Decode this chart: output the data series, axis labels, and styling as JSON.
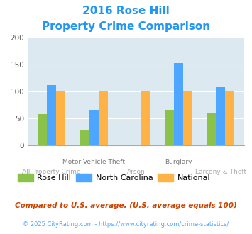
{
  "title_line1": "2016 Rose Hill",
  "title_line2": "Property Crime Comparison",
  "categories": [
    "All Property Crime",
    "Motor Vehicle Theft",
    "Arson",
    "Burglary",
    "Larceny & Theft"
  ],
  "rose_hill": [
    58,
    27,
    0,
    65,
    60
  ],
  "north_carolina": [
    112,
    65,
    0,
    152,
    107
  ],
  "national": [
    100,
    100,
    100,
    100,
    100
  ],
  "color_rh": "#8bc34a",
  "color_nc": "#4da6ff",
  "color_nat": "#ffb347",
  "ylim": [
    0,
    200
  ],
  "yticks": [
    0,
    50,
    100,
    150,
    200
  ],
  "legend_labels": [
    "Rose Hill",
    "North Carolina",
    "National"
  ],
  "footnote1": "Compared to U.S. average. (U.S. average equals 100)",
  "footnote2": "© 2025 CityRating.com - https://www.cityrating.com/crime-statistics/",
  "title_color": "#2196f3",
  "footnote1_color": "#cc4400",
  "footnote2_color": "#4da6ff",
  "plot_bg": "#dce9f0",
  "upper_labels": [
    "",
    "Motor Vehicle Theft",
    "",
    "Burglary",
    ""
  ],
  "lower_labels": [
    "All Property Crime",
    "",
    "Arson",
    "",
    "Larceny & Theft"
  ],
  "bar_width": 0.22
}
